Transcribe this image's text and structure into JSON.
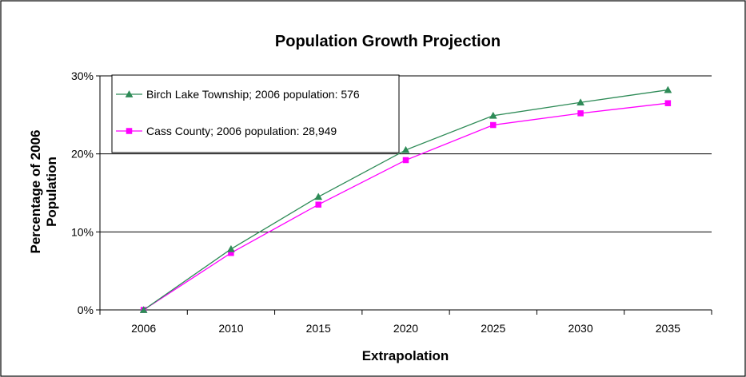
{
  "chart_data": {
    "type": "line",
    "title": "Population Growth Projection",
    "xlabel": "Extrapolation",
    "ylabel": "Percentage of 2006 Population",
    "ylabel_lines": [
      "Percentage of 2006",
      "Population"
    ],
    "categories": [
      "2006",
      "2010",
      "2015",
      "2020",
      "2025",
      "2030",
      "2035"
    ],
    "y_ticks": [
      "0%",
      "10%",
      "20%",
      "30%"
    ],
    "y_tick_values": [
      0,
      10,
      20,
      30
    ],
    "ylim": [
      0,
      30
    ],
    "grid": true,
    "legend_position": "top-left",
    "series": [
      {
        "name": "Birch Lake Township; 2006 population: 576",
        "values": [
          0,
          7.8,
          14.5,
          20.5,
          24.9,
          26.6,
          28.2
        ],
        "color": "#2e8b57",
        "marker": "triangle"
      },
      {
        "name": "Cass County; 2006 population: 28,949",
        "values": [
          0,
          7.3,
          13.5,
          19.2,
          23.7,
          25.2,
          26.5
        ],
        "color": "#ff00ff",
        "marker": "square"
      }
    ]
  }
}
